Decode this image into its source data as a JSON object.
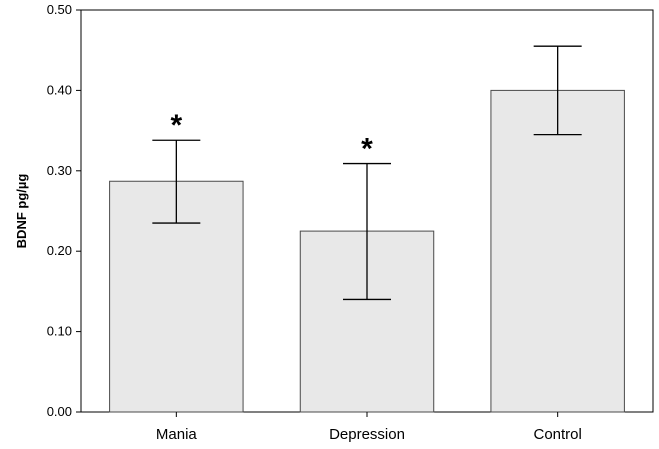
{
  "chart_data": {
    "type": "bar",
    "title": "",
    "xlabel": "",
    "ylabel": "BDNF pg/µg",
    "categories": [
      "Mania",
      "Depression",
      "Control"
    ],
    "values": [
      0.287,
      0.225,
      0.4
    ],
    "error_low": [
      0.235,
      0.14,
      0.345
    ],
    "error_high": [
      0.338,
      0.309,
      0.455
    ],
    "significance": [
      "*",
      "*",
      ""
    ],
    "ylim": [
      0,
      0.5
    ],
    "yticks": [
      0.0,
      0.1,
      0.2,
      0.3,
      0.4,
      0.5
    ],
    "ytick_labels": [
      "0.00",
      "0.10",
      "0.20",
      "0.30",
      "0.40",
      "0.50"
    ],
    "grid": false,
    "legend": "none",
    "colors": {
      "bar_fill": "#e8e8e8",
      "bar_stroke": "#4a4a4a",
      "axis": "#000000",
      "error_bar": "#000000"
    }
  }
}
